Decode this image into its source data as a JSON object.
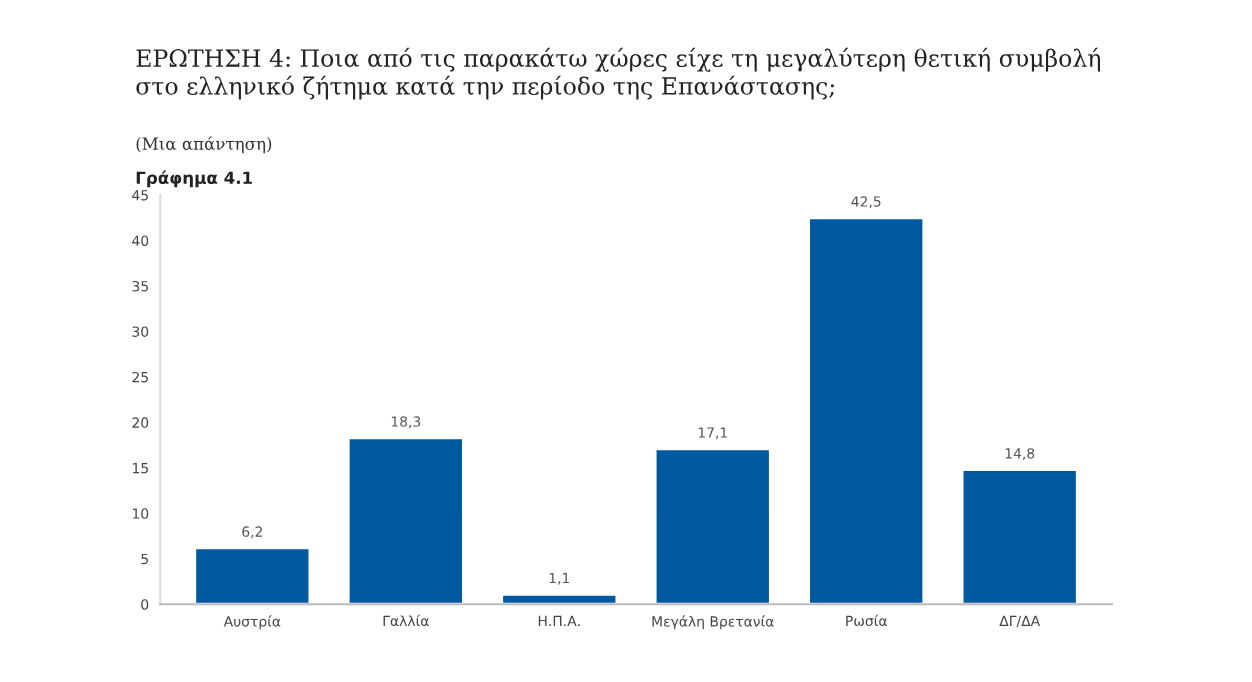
{
  "chart_data": {
    "type": "bar",
    "title": "ΕΡΩΤΗΣΗ 4: Ποια από τις παρακάτω χώρες είχε τη μεγαλύτερη θετική συμβολή στο ελληνικό ζήτημα κατά την περίοδο της Επανάστασης;",
    "subtitle": "(Μια απάντηση)",
    "annotations": [
      "Γράφημα 4.1"
    ],
    "categories": [
      "Αυστρία",
      "Γαλλία",
      "Η.Π.Α.",
      "Μεγάλη Βρετανία",
      "Ρωσία",
      "ΔΓ/ΔΑ"
    ],
    "values": [
      6.2,
      18.3,
      1.1,
      17.1,
      42.5,
      14.8
    ],
    "value_labels": [
      "6,2",
      "18,3",
      "1,1",
      "17,1",
      "42,5",
      "14,8"
    ],
    "color": "#00599f",
    "ylim": [
      0,
      45
    ],
    "yticks": [
      0,
      5,
      10,
      15,
      20,
      25,
      30,
      35,
      40,
      45
    ],
    "grid": false,
    "legend": false
  }
}
